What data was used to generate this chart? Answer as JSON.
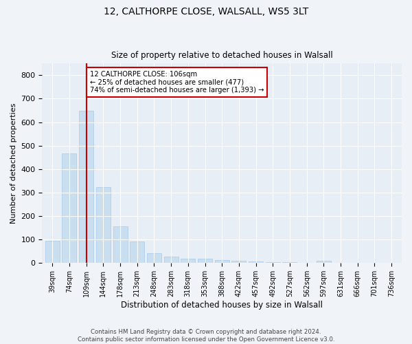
{
  "title1": "12, CALTHORPE CLOSE, WALSALL, WS5 3LT",
  "title2": "Size of property relative to detached houses in Walsall",
  "xlabel": "Distribution of detached houses by size in Walsall",
  "ylabel": "Number of detached properties",
  "categories": [
    "39sqm",
    "74sqm",
    "109sqm",
    "144sqm",
    "178sqm",
    "213sqm",
    "248sqm",
    "283sqm",
    "318sqm",
    "353sqm",
    "388sqm",
    "422sqm",
    "457sqm",
    "492sqm",
    "527sqm",
    "562sqm",
    "597sqm",
    "631sqm",
    "666sqm",
    "701sqm",
    "736sqm"
  ],
  "values": [
    95,
    468,
    648,
    323,
    157,
    93,
    43,
    27,
    19,
    17,
    13,
    10,
    7,
    5,
    4,
    2,
    8,
    1,
    0,
    0,
    0
  ],
  "bar_color": "#c9dff0",
  "bar_edge_color": "#a8c8e8",
  "vline_x": 2,
  "vline_color": "#cc0000",
  "annotation_text": "12 CALTHORPE CLOSE: 106sqm\n← 25% of detached houses are smaller (477)\n74% of semi-detached houses are larger (1,393) →",
  "annotation_box_color": "#ffffff",
  "annotation_box_edge_color": "#cc0000",
  "ylim": [
    0,
    850
  ],
  "yticks": [
    0,
    100,
    200,
    300,
    400,
    500,
    600,
    700,
    800
  ],
  "footer": "Contains HM Land Registry data © Crown copyright and database right 2024.\nContains public sector information licensed under the Open Government Licence v3.0.",
  "bg_color": "#f0f4f8",
  "plot_bg_color": "#e8eef5"
}
